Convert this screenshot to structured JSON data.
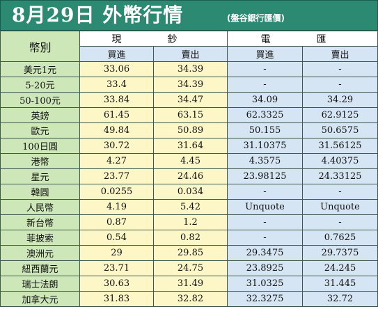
{
  "title": "8月29日 外幣行情",
  "subtitle": "(盤谷銀行匯價)",
  "headers": {
    "currency": "幣別",
    "cash": "現　鈔",
    "wire": "電　匯",
    "cash_buy": "買進",
    "cash_sell": "賣出",
    "wire_buy": "買進",
    "wire_sell": "賣出"
  },
  "rows": [
    {
      "currency": "美元1元",
      "cash_buy": "33.06",
      "cash_sell": "34.39",
      "wire_buy": "-",
      "wire_sell": "-"
    },
    {
      "currency": "5-20元",
      "cash_buy": "33.4",
      "cash_sell": "34.39",
      "wire_buy": "-",
      "wire_sell": "-"
    },
    {
      "currency": "50-100元",
      "cash_buy": "33.84",
      "cash_sell": "34.47",
      "wire_buy": "34.09",
      "wire_sell": "34.29"
    },
    {
      "currency": "英鎊",
      "cash_buy": "61.45",
      "cash_sell": "63.15",
      "wire_buy": "62.3325",
      "wire_sell": "62.9125"
    },
    {
      "currency": "歐元",
      "cash_buy": "49.84",
      "cash_sell": "50.89",
      "wire_buy": "50.155",
      "wire_sell": "50.6575"
    },
    {
      "currency": "100日圓",
      "cash_buy": "30.72",
      "cash_sell": "31.64",
      "wire_buy": "31.10375",
      "wire_sell": "31.56125"
    },
    {
      "currency": "港幣",
      "cash_buy": "4.27",
      "cash_sell": "4.45",
      "wire_buy": "4.3575",
      "wire_sell": "4.40375"
    },
    {
      "currency": "星元",
      "cash_buy": "23.77",
      "cash_sell": "24.46",
      "wire_buy": "23.98125",
      "wire_sell": "24.33125"
    },
    {
      "currency": "韓圓",
      "cash_buy": "0.0255",
      "cash_sell": "0.034",
      "wire_buy": "-",
      "wire_sell": "-"
    },
    {
      "currency": "人民幣",
      "cash_buy": "4.19",
      "cash_sell": "5.42",
      "wire_buy": "Unquote",
      "wire_sell": "Unquote"
    },
    {
      "currency": "新台幣",
      "cash_buy": "0.87",
      "cash_sell": "1.2",
      "wire_buy": "-",
      "wire_sell": "-"
    },
    {
      "currency": "菲披索",
      "cash_buy": "0.54",
      "cash_sell": "0.82",
      "wire_buy": "-",
      "wire_sell": "0.7625"
    },
    {
      "currency": "澳洲元",
      "cash_buy": "29",
      "cash_sell": "29.85",
      "wire_buy": "29.3475",
      "wire_sell": "29.7375"
    },
    {
      "currency": "紐西蘭元",
      "cash_buy": "23.71",
      "cash_sell": "24.75",
      "wire_buy": "23.8925",
      "wire_sell": "24.245"
    },
    {
      "currency": "瑞士法朗",
      "cash_buy": "30.63",
      "cash_sell": "31.49",
      "wire_buy": "31.0325",
      "wire_sell": "31.445"
    },
    {
      "currency": "加拿大元",
      "cash_buy": "31.83",
      "cash_sell": "32.82",
      "wire_buy": "32.3275",
      "wire_sell": "32.72"
    }
  ]
}
